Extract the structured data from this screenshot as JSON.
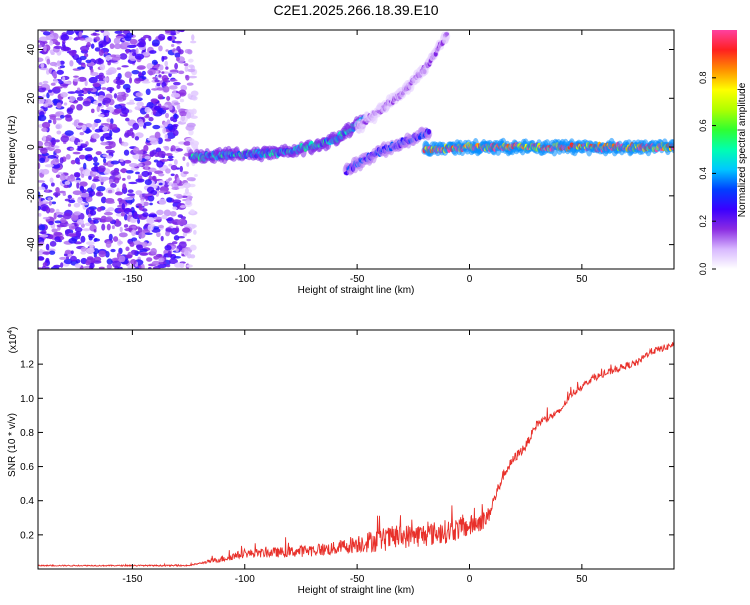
{
  "title": "C2E1.2025.266.18.39.E10",
  "chart_data": [
    {
      "type": "heatmap",
      "xlabel": "Height of straight line (km)",
      "ylabel": "Frequency (Hz)",
      "xlim": [
        -192,
        91
      ],
      "ylim": [
        -50,
        48
      ],
      "x_ticks": [
        -150,
        -100,
        -50,
        0,
        50
      ],
      "x_tick_labels": [
        "-150",
        "-100",
        "-50",
        "0",
        "50"
      ],
      "y_ticks": [
        -40,
        -20,
        0,
        20,
        40
      ],
      "y_tick_labels": [
        "-40",
        "-20",
        "0",
        "20",
        "40"
      ],
      "colorbar": {
        "label": "Normalized spectral amplitude",
        "range": [
          0,
          1
        ],
        "ticks": [
          0,
          0.2,
          0.4,
          0.6,
          0.8
        ],
        "tick_labels": [
          "0.0",
          "0.2",
          "0.4",
          "0.6",
          "0.8"
        ],
        "colors": [
          "#ffffff",
          "#d8b8ff",
          "#8a2be2",
          "#3a00ff",
          "#0040ff",
          "#00c8ff",
          "#00ffb0",
          "#30ff30",
          "#b0ff00",
          "#ffff00",
          "#ff9000",
          "#ff2020",
          "#ff40a0"
        ]
      },
      "features": [
        {
          "name": "noise-band",
          "x_range": [
            -192,
            -120
          ],
          "y_range": [
            -50,
            48
          ],
          "amplitude": 0.25
        },
        {
          "name": "main-trace",
          "points": [
            [
              -124,
              -4
            ],
            [
              -100,
              -3
            ],
            [
              -80,
              -2
            ],
            [
              -60,
              3
            ],
            [
              -47,
              11
            ]
          ],
          "amplitude": 0.45
        },
        {
          "name": "upper-branch",
          "points": [
            [
              -50,
              8
            ],
            [
              -40,
              15
            ],
            [
              -30,
              22
            ],
            [
              -20,
              32
            ],
            [
              -10,
              46
            ]
          ],
          "amplitude": 0.15
        },
        {
          "name": "lower-branch",
          "points": [
            [
              -55,
              -10
            ],
            [
              -45,
              -4
            ],
            [
              -35,
              0
            ],
            [
              -25,
              4
            ],
            [
              -18,
              6
            ]
          ],
          "amplitude": 0.3
        },
        {
          "name": "carrier-line",
          "points": [
            [
              -20,
              -1
            ],
            [
              0,
              0
            ],
            [
              15,
              0
            ],
            [
              50,
              0
            ],
            [
              91,
              0
            ]
          ],
          "amplitude": 0.95
        }
      ]
    },
    {
      "type": "line",
      "xlabel": "Height of straight line (km)",
      "ylabel": "SNR (10 * v/v)",
      "scale_label": "(x10",
      "scale_exponent": "4",
      "scale_suffix": ")",
      "xlim": [
        -192,
        91
      ],
      "ylim": [
        0,
        1.4
      ],
      "x_ticks": [
        -150,
        -100,
        -50,
        0,
        50
      ],
      "x_tick_labels": [
        "-150",
        "-100",
        "-50",
        "0",
        "50"
      ],
      "y_ticks": [
        0.2,
        0.4,
        0.6,
        0.8,
        1.0,
        1.2
      ],
      "y_tick_labels": [
        "0.2",
        "0.4",
        "0.6",
        "0.8",
        "1.0",
        "1.2"
      ],
      "color": "#e8302a",
      "anchors": [
        [
          -192,
          0.02
        ],
        [
          -125,
          0.02
        ],
        [
          -110,
          0.06
        ],
        [
          -100,
          0.09
        ],
        [
          -80,
          0.1
        ],
        [
          -60,
          0.12
        ],
        [
          -50,
          0.15
        ],
        [
          -40,
          0.17
        ],
        [
          -30,
          0.19
        ],
        [
          -20,
          0.2
        ],
        [
          -10,
          0.22
        ],
        [
          0,
          0.25
        ],
        [
          8,
          0.3
        ],
        [
          15,
          0.55
        ],
        [
          20,
          0.65
        ],
        [
          25,
          0.72
        ],
        [
          30,
          0.85
        ],
        [
          40,
          0.92
        ],
        [
          45,
          1.02
        ],
        [
          55,
          1.12
        ],
        [
          60,
          1.14
        ],
        [
          65,
          1.17
        ],
        [
          75,
          1.21
        ],
        [
          80,
          1.27
        ],
        [
          88,
          1.3
        ],
        [
          91,
          1.32
        ]
      ],
      "noise": [
        [
          -192,
          0.003
        ],
        [
          -120,
          0.004
        ],
        [
          -110,
          0.02
        ],
        [
          -60,
          0.04
        ],
        [
          -40,
          0.07
        ],
        [
          -10,
          0.07
        ],
        [
          5,
          0.06
        ],
        [
          15,
          0.03
        ],
        [
          40,
          0.02
        ],
        [
          91,
          0.02
        ]
      ]
    }
  ]
}
